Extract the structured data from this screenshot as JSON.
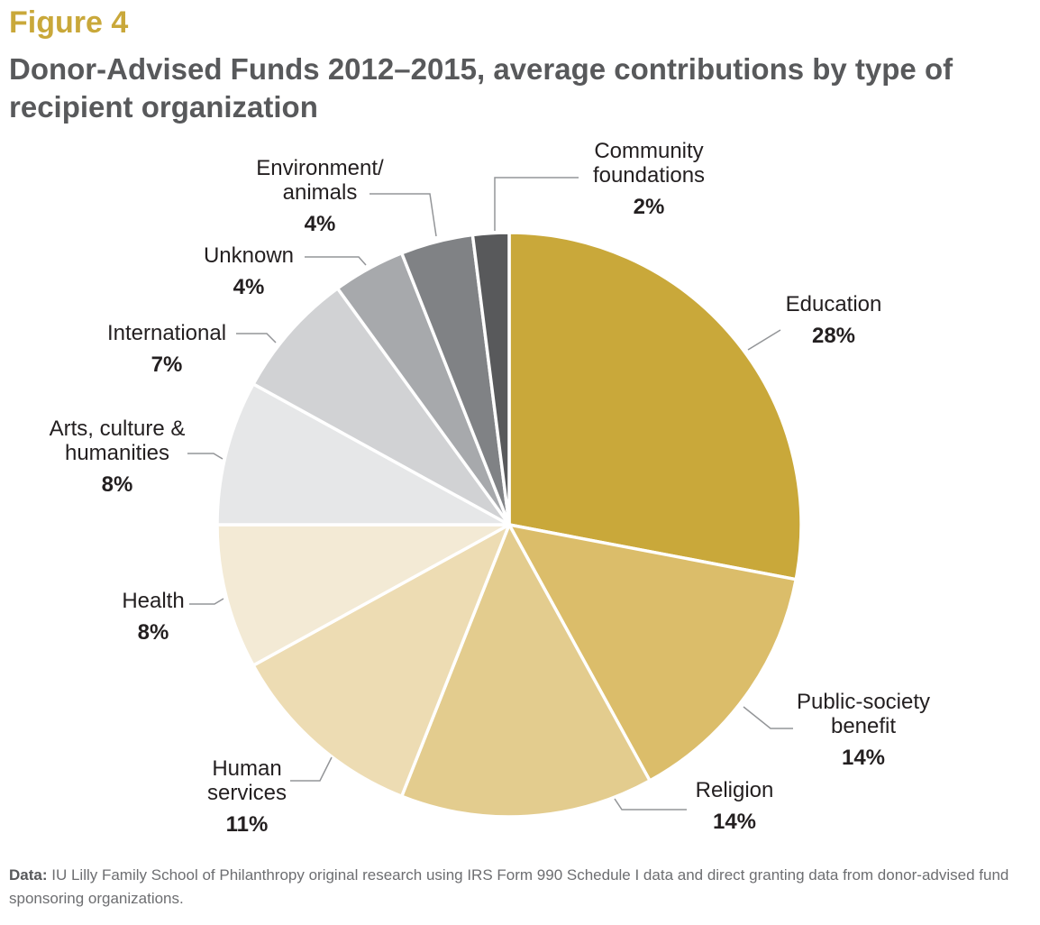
{
  "header": {
    "figure_label": "Figure 4",
    "title": "Donor-Advised Funds 2012–2015, average contributions by type of recipient organization"
  },
  "chart_data": {
    "type": "pie",
    "title": "Donor-Advised Funds 2012–2015, average contributions by type of recipient organization",
    "start": "12 o'clock, clockwise",
    "slices": [
      {
        "label": "Education",
        "value": 28,
        "display": "28%",
        "color": "#c9a83a"
      },
      {
        "label": "Public-society benefit",
        "value": 14,
        "display": "14%",
        "color": "#dbbd6a"
      },
      {
        "label": "Religion",
        "value": 14,
        "display": "14%",
        "color": "#e3cc8e"
      },
      {
        "label": "Human services",
        "value": 11,
        "display": "11%",
        "color": "#eddcb3"
      },
      {
        "label": "Health",
        "value": 8,
        "display": "8%",
        "color": "#f3ead5"
      },
      {
        "label": "Arts, culture & humanities",
        "value": 8,
        "display": "8%",
        "color": "#e6e7e8"
      },
      {
        "label": "International",
        "value": 7,
        "display": "7%",
        "color": "#d1d2d4"
      },
      {
        "label": "Unknown",
        "value": 4,
        "display": "4%",
        "color": "#a7a9ac"
      },
      {
        "label": "Environment/ animals",
        "value": 4,
        "display": "4%",
        "color": "#808285"
      },
      {
        "label": "Community foundations",
        "value": 2,
        "display": "2%",
        "color": "#58595b"
      }
    ],
    "label_lines": [
      [
        "Education"
      ],
      [
        "Public-society",
        "benefit"
      ],
      [
        "Religion"
      ],
      [
        "Human",
        "services"
      ],
      [
        "Health"
      ],
      [
        "Arts, culture &",
        "humanities"
      ],
      [
        "International"
      ],
      [
        "Unknown"
      ],
      [
        "Environment/",
        "animals"
      ],
      [
        "Community",
        "foundations"
      ]
    ]
  },
  "footnote": {
    "label": "Data:",
    "text": " IU Lilly Family School of Philanthropy original research using IRS Form 990 Schedule I data and direct granting data from donor-advised fund sponsoring organizations."
  }
}
